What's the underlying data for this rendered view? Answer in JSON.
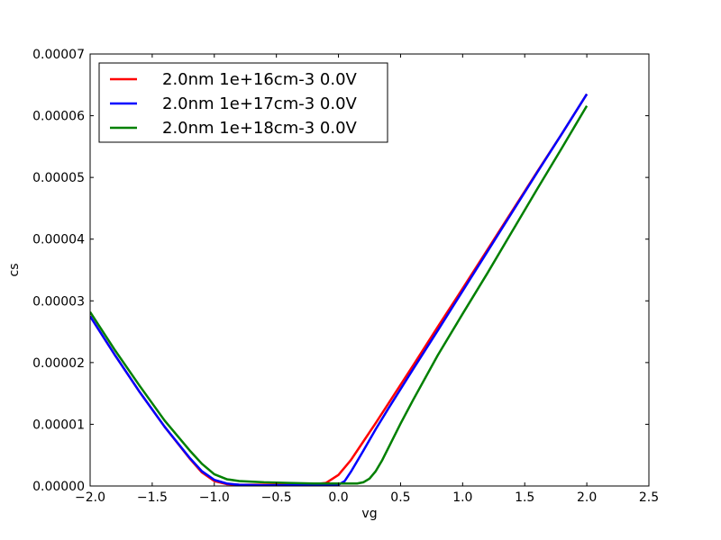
{
  "chart_data": {
    "type": "line",
    "xlabel": "vg",
    "ylabel": "cs",
    "xlim": [
      -2.0,
      2.5
    ],
    "ylim": [
      0,
      7e-05
    ],
    "x_ticks": [
      "−2.0",
      "−1.5",
      "−1.0",
      "−0.5",
      "0.0",
      "0.5",
      "1.0",
      "1.5",
      "2.0",
      "2.5"
    ],
    "x_tick_values": [
      -2.0,
      -1.5,
      -1.0,
      -0.5,
      0.0,
      0.5,
      1.0,
      1.5,
      2.0,
      2.5
    ],
    "y_ticks": [
      "0.00000",
      "0.00001",
      "0.00002",
      "0.00003",
      "0.00004",
      "0.00005",
      "0.00006",
      "0.00007"
    ],
    "y_tick_values": [
      0,
      1e-05,
      2e-05,
      3e-05,
      4e-05,
      5e-05,
      6e-05,
      7e-05
    ],
    "legend_position": "top-left",
    "grid": false,
    "series": [
      {
        "name": "2.0nm 1e+16cm-3 0.0V",
        "color": "#ff0000",
        "x": [
          -2.0,
          -1.8,
          -1.6,
          -1.4,
          -1.2,
          -1.1,
          -1.0,
          -0.9,
          -0.8,
          -0.6,
          -0.4,
          -0.2,
          -0.1,
          0.0,
          0.1,
          0.2,
          0.3,
          0.4,
          0.6,
          0.8,
          1.0,
          1.2,
          1.4,
          1.6,
          1.8,
          2.0
        ],
        "y": [
          2.75e-05,
          2.12e-05,
          1.52e-05,
          9.6e-06,
          4.5e-06,
          2.2e-06,
          8e-07,
          3e-07,
          2e-07,
          2e-07,
          2e-07,
          3e-07,
          5e-07,
          1.8e-06,
          4.2e-06,
          7.2e-06,
          1.02e-05,
          1.33e-05,
          1.95e-05,
          2.58e-05,
          3.2e-05,
          3.83e-05,
          4.46e-05,
          5.09e-05,
          5.71e-05,
          6.35e-05
        ]
      },
      {
        "name": "2.0nm 1e+17cm-3 0.0V",
        "color": "#0000ff",
        "x": [
          -2.0,
          -1.8,
          -1.6,
          -1.4,
          -1.2,
          -1.1,
          -1.0,
          -0.9,
          -0.8,
          -0.6,
          -0.4,
          -0.2,
          0.0,
          0.05,
          0.1,
          0.2,
          0.3,
          0.4,
          0.6,
          0.8,
          1.0,
          1.2,
          1.4,
          1.6,
          1.8,
          2.0
        ],
        "y": [
          2.75e-05,
          2.12e-05,
          1.52e-05,
          9.6e-06,
          4.6e-06,
          2.4e-06,
          1e-06,
          4e-07,
          2e-07,
          1e-07,
          1e-07,
          1e-07,
          2e-07,
          8e-07,
          2.3e-06,
          5.7e-06,
          9.2e-06,
          1.25e-05,
          1.89e-05,
          2.52e-05,
          3.16e-05,
          3.8e-05,
          4.44e-05,
          5.08e-05,
          5.71e-05,
          6.35e-05
        ]
      },
      {
        "name": "2.0nm 1e+18cm-3 0.0V",
        "color": "#008000",
        "x": [
          -2.0,
          -1.8,
          -1.6,
          -1.4,
          -1.2,
          -1.1,
          -1.0,
          -0.9,
          -0.8,
          -0.6,
          -0.4,
          -0.2,
          0.0,
          0.15,
          0.2,
          0.25,
          0.3,
          0.35,
          0.4,
          0.5,
          0.6,
          0.8,
          1.0,
          1.2,
          1.4,
          1.6,
          1.8,
          2.0
        ],
        "y": [
          2.82e-05,
          2.2e-05,
          1.62e-05,
          1.06e-05,
          5.8e-06,
          3.6e-06,
          1.9e-06,
          1.1e-06,
          8e-07,
          6e-07,
          5e-07,
          4e-07,
          4e-07,
          4e-07,
          6e-07,
          1.2e-06,
          2.4e-06,
          4.1e-06,
          6.1e-06,
          1.01e-05,
          1.39e-05,
          2.12e-05,
          2.79e-05,
          3.45e-05,
          4.13e-05,
          4.81e-05,
          5.48e-05,
          6.16e-05
        ]
      }
    ]
  }
}
